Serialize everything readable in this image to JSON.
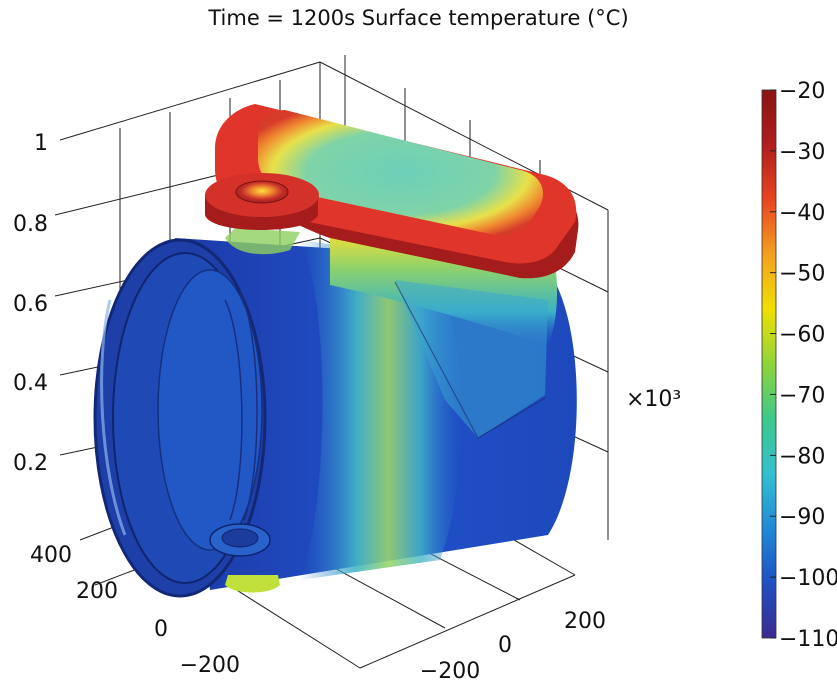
{
  "chart_data": {
    "type": "surface-3d",
    "title": "Time = 1200s Surface temperature (°C)",
    "z_axis": {
      "ticks": [
        "1",
        "0.8",
        "0.6",
        "0.4",
        "0.2"
      ],
      "multiplier_label": "×10³"
    },
    "y_axis": {
      "ticks": [
        "400",
        "200",
        "0",
        "−200"
      ]
    },
    "x_axis": {
      "ticks": [
        "200",
        "0",
        "−200"
      ]
    },
    "colorbar": {
      "label_values": [
        "−20",
        "−30",
        "−40",
        "−50",
        "−60",
        "−70",
        "−80",
        "−90",
        "−100",
        "−110"
      ],
      "range": [
        -110,
        -20
      ],
      "colormap": [
        "#3b2b90",
        "#1e4fc2",
        "#1f8ad8",
        "#33c0d0",
        "#3cc98a",
        "#8fd43a",
        "#f0e000",
        "#f3a020",
        "#e8451e",
        "#b01d1d",
        "#8a1414"
      ]
    },
    "grid": true,
    "object": "cylindrical tank with rectangular rounded lid, colored by surface temperature"
  }
}
